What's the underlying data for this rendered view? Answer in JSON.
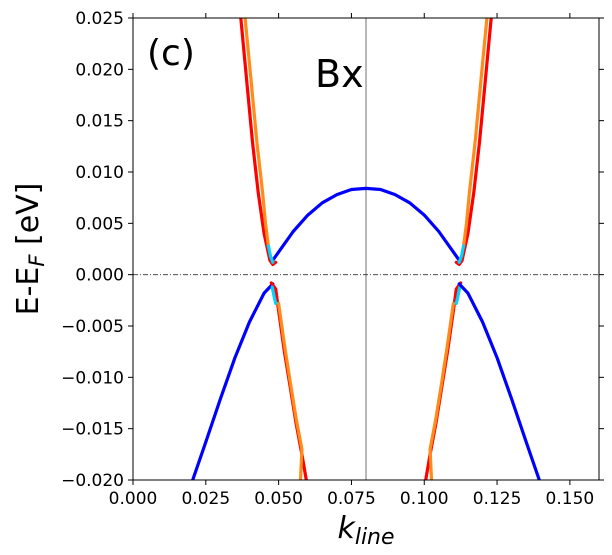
{
  "chart_data": {
    "type": "line",
    "panel_label": "(c)",
    "annotation": "Bx",
    "xlabel": {
      "main": "k",
      "sub": "line"
    },
    "ylabel": {
      "pre": "E-E",
      "sub": "F",
      "post": " [eV]"
    },
    "xlim": [
      0.0,
      0.16
    ],
    "ylim": [
      -0.02,
      0.025
    ],
    "x_ticks": [
      {
        "value": 0.0,
        "label": "0.000"
      },
      {
        "value": 0.025,
        "label": "0.025"
      },
      {
        "value": 0.05,
        "label": "0.050"
      },
      {
        "value": 0.075,
        "label": "0.075"
      },
      {
        "value": 0.1,
        "label": "0.100"
      },
      {
        "value": 0.125,
        "label": "0.125"
      },
      {
        "value": 0.15,
        "label": "0.150"
      }
    ],
    "y_ticks": [
      {
        "value": -0.02,
        "label": "−0.020"
      },
      {
        "value": -0.015,
        "label": "−0.015"
      },
      {
        "value": -0.01,
        "label": "−0.010"
      },
      {
        "value": -0.005,
        "label": "−0.005"
      },
      {
        "value": 0.0,
        "label": "0.000"
      },
      {
        "value": 0.005,
        "label": "0.005"
      },
      {
        "value": 0.01,
        "label": "0.010"
      },
      {
        "value": 0.015,
        "label": "0.015"
      },
      {
        "value": 0.02,
        "label": "0.020"
      },
      {
        "value": 0.025,
        "label": "0.025"
      }
    ],
    "reference_lines": {
      "vertical_x": 0.08,
      "horizontal_y": 0.0
    },
    "colors": {
      "blue": "#0000ff",
      "red": "#ff0000",
      "orange": "#ff8c1a",
      "cyan": "#00d4ff",
      "vline": "#888888",
      "hline": "#333333"
    },
    "series": [
      {
        "color": "blue",
        "points": [
          [
            0.0475,
            0.0012
          ],
          [
            0.05,
            0.0022
          ],
          [
            0.055,
            0.0042
          ],
          [
            0.06,
            0.0058
          ],
          [
            0.065,
            0.007
          ],
          [
            0.07,
            0.0078
          ],
          [
            0.075,
            0.0083
          ],
          [
            0.08,
            0.0084
          ],
          [
            0.085,
            0.0083
          ],
          [
            0.09,
            0.0078
          ],
          [
            0.095,
            0.007
          ],
          [
            0.1,
            0.0058
          ],
          [
            0.105,
            0.0042
          ],
          [
            0.11,
            0.0022
          ],
          [
            0.1125,
            0.0012
          ]
        ]
      },
      {
        "color": "red",
        "points": [
          [
            0.037,
            0.025
          ],
          [
            0.039,
            0.019
          ],
          [
            0.041,
            0.013
          ],
          [
            0.043,
            0.008
          ],
          [
            0.045,
            0.004
          ],
          [
            0.047,
            0.0014
          ],
          [
            0.048,
            0.001
          ],
          [
            0.049,
            0.0012
          ]
        ]
      },
      {
        "color": "orange",
        "points": [
          [
            0.0385,
            0.025
          ],
          [
            0.0405,
            0.019
          ],
          [
            0.0425,
            0.013
          ],
          [
            0.0445,
            0.008
          ],
          [
            0.0455,
            0.005
          ],
          [
            0.0465,
            0.0028
          ]
        ]
      },
      {
        "color": "cyan",
        "points": [
          [
            0.0465,
            0.0028
          ],
          [
            0.0472,
            0.0018
          ],
          [
            0.048,
            0.0012
          ]
        ]
      },
      {
        "color": "red",
        "points": [
          [
            0.111,
            0.0012
          ],
          [
            0.112,
            0.001
          ],
          [
            0.113,
            0.0014
          ],
          [
            0.115,
            0.004
          ],
          [
            0.117,
            0.008
          ],
          [
            0.119,
            0.013
          ],
          [
            0.121,
            0.019
          ],
          [
            0.123,
            0.025
          ]
        ]
      },
      {
        "color": "orange",
        "points": [
          [
            0.1135,
            0.0028
          ],
          [
            0.1145,
            0.005
          ],
          [
            0.1155,
            0.008
          ],
          [
            0.1175,
            0.013
          ],
          [
            0.1195,
            0.019
          ],
          [
            0.1215,
            0.025
          ]
        ]
      },
      {
        "color": "cyan",
        "points": [
          [
            0.112,
            0.0012
          ],
          [
            0.1128,
            0.0018
          ],
          [
            0.1135,
            0.0028
          ]
        ]
      },
      {
        "color": "blue",
        "points": [
          [
            0.0205,
            -0.02
          ],
          [
            0.025,
            -0.0163
          ],
          [
            0.03,
            -0.0121
          ],
          [
            0.035,
            -0.0081
          ],
          [
            0.04,
            -0.0046
          ],
          [
            0.045,
            -0.0018
          ],
          [
            0.048,
            -0.0009
          ]
        ]
      },
      {
        "color": "red",
        "points": [
          [
            0.0475,
            -0.0008
          ],
          [
            0.049,
            -0.0014
          ],
          [
            0.05,
            -0.0035
          ],
          [
            0.052,
            -0.0075
          ],
          [
            0.054,
            -0.011
          ],
          [
            0.056,
            -0.0145
          ],
          [
            0.058,
            -0.0175
          ],
          [
            0.0595,
            -0.02
          ]
        ]
      },
      {
        "color": "orange",
        "points": [
          [
            0.05,
            -0.0028
          ],
          [
            0.052,
            -0.0068
          ],
          [
            0.054,
            -0.0105
          ],
          [
            0.056,
            -0.014
          ],
          [
            0.058,
            -0.017
          ],
          [
            0.0575,
            -0.02
          ]
        ]
      },
      {
        "color": "cyan",
        "points": [
          [
            0.0478,
            -0.0012
          ],
          [
            0.0485,
            -0.0022
          ],
          [
            0.049,
            -0.0028
          ]
        ]
      },
      {
        "color": "red",
        "points": [
          [
            0.1125,
            -0.0008
          ],
          [
            0.111,
            -0.0014
          ],
          [
            0.11,
            -0.0035
          ],
          [
            0.108,
            -0.0075
          ],
          [
            0.106,
            -0.011
          ],
          [
            0.104,
            -0.0145
          ],
          [
            0.102,
            -0.0175
          ],
          [
            0.1005,
            -0.02
          ]
        ]
      },
      {
        "color": "orange",
        "points": [
          [
            0.11,
            -0.0028
          ],
          [
            0.108,
            -0.0068
          ],
          [
            0.106,
            -0.0105
          ],
          [
            0.104,
            -0.014
          ],
          [
            0.102,
            -0.017
          ],
          [
            0.1025,
            -0.02
          ]
        ]
      },
      {
        "color": "cyan",
        "points": [
          [
            0.1122,
            -0.0012
          ],
          [
            0.1115,
            -0.0022
          ],
          [
            0.111,
            -0.0028
          ]
        ]
      },
      {
        "color": "blue",
        "points": [
          [
            0.112,
            -0.0009
          ],
          [
            0.115,
            -0.0018
          ],
          [
            0.12,
            -0.0046
          ],
          [
            0.125,
            -0.0081
          ],
          [
            0.13,
            -0.0121
          ],
          [
            0.135,
            -0.0163
          ],
          [
            0.1395,
            -0.02
          ]
        ]
      }
    ]
  }
}
